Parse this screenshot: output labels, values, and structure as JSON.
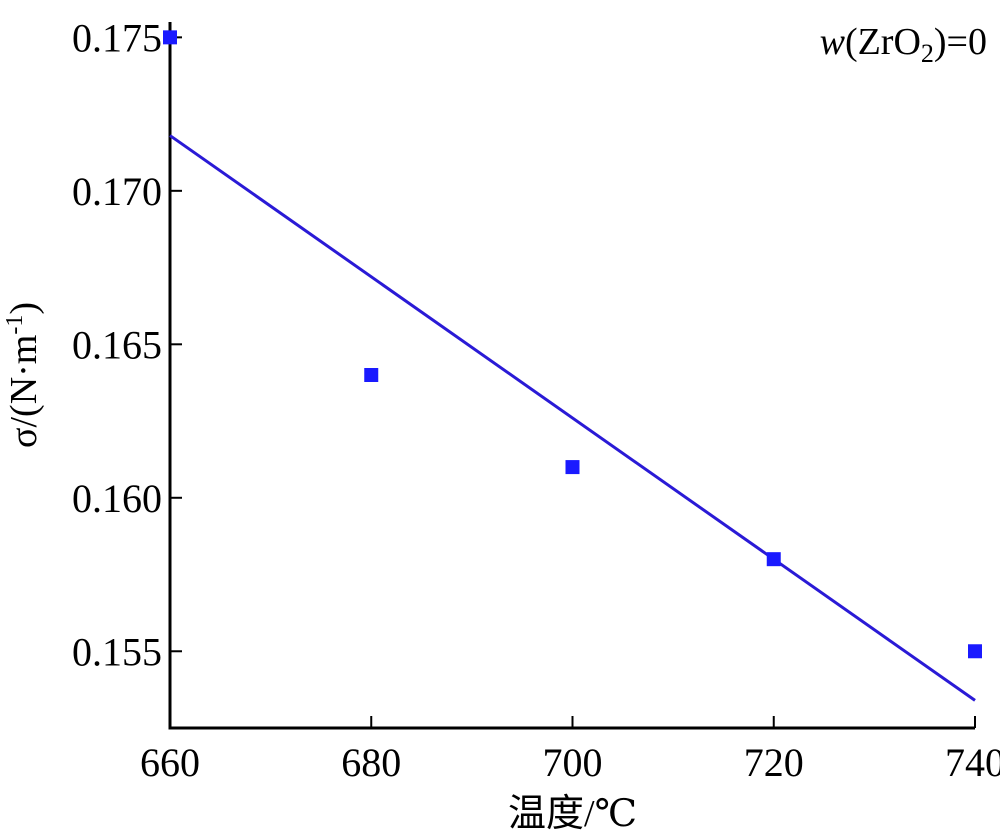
{
  "chart_data": {
    "type": "scatter",
    "xlabel": "温度/℃",
    "ylabel": {
      "main": "σ/(N·m",
      "sup": "-1",
      "end": ")"
    },
    "annotation": {
      "italic": "w",
      "open": "(ZrO",
      "sub": "2",
      "close": ")=0"
    },
    "xlim": [
      660,
      740
    ],
    "ylim": [
      0.1525,
      0.1755
    ],
    "xticks": [
      660,
      680,
      700,
      720,
      740
    ],
    "yticks": [
      0.155,
      0.16,
      0.165,
      0.17,
      0.175
    ],
    "ytick_labels": [
      "0.155",
      "0.160",
      "0.165",
      "0.170",
      "0.175"
    ],
    "series": [
      {
        "points": [
          {
            "x": 660,
            "y": 0.175
          },
          {
            "x": 680,
            "y": 0.164
          },
          {
            "x": 700,
            "y": 0.161
          },
          {
            "x": 720,
            "y": 0.158
          },
          {
            "x": 740,
            "y": 0.155
          }
        ]
      }
    ],
    "fit_line": {
      "x": [
        660,
        740
      ],
      "y": [
        0.1718,
        0.1534
      ]
    },
    "colors": {
      "marker": "#1a1aff",
      "line": "#2a1ad6",
      "axis": "#000000"
    },
    "grid": false
  }
}
